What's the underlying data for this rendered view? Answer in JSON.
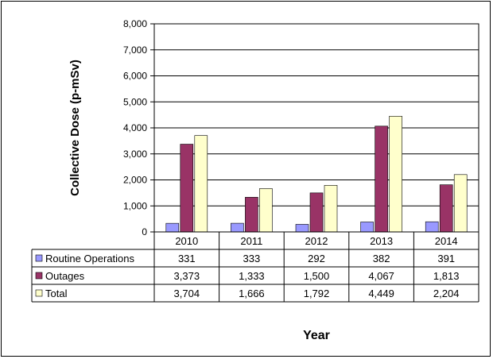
{
  "chart_data": {
    "type": "bar",
    "categories": [
      "2010",
      "2011",
      "2012",
      "2013",
      "2014"
    ],
    "series": [
      {
        "name": "Routine Operations",
        "values": [
          331,
          333,
          292,
          382,
          391
        ],
        "labels": [
          "331",
          "333",
          "292",
          "382",
          "391"
        ],
        "color": "#9999FF"
      },
      {
        "name": "Outages",
        "values": [
          3373,
          1333,
          1500,
          4067,
          1813
        ],
        "labels": [
          "3,373",
          "1,333",
          "1,500",
          "4,067",
          "1,813"
        ],
        "color": "#993366"
      },
      {
        "name": "Total",
        "values": [
          3704,
          1666,
          1792,
          4449,
          2204
        ],
        "labels": [
          "3,704",
          "1,666",
          "1,792",
          "4,449",
          "2,204"
        ],
        "color": "#FFFFCC"
      }
    ],
    "ylabel": "Collective Dose (p-mSv)",
    "xlabel": "Year",
    "ylim": [
      0,
      8000
    ],
    "yticks": [
      0,
      1000,
      2000,
      3000,
      4000,
      5000,
      6000,
      7000,
      8000
    ],
    "ytick_labels": [
      "0",
      "1,000",
      "2,000",
      "3,000",
      "4,000",
      "5,000",
      "6,000",
      "7,000",
      "8,000"
    ],
    "grid": true,
    "legend": "data-table"
  }
}
